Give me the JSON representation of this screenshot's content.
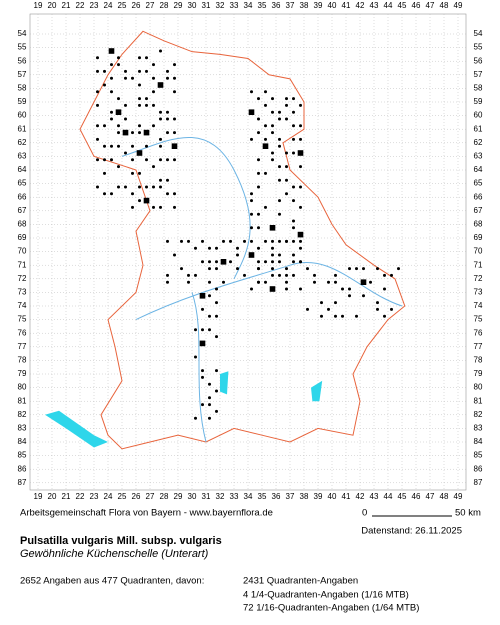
{
  "map": {
    "columns": [
      19,
      20,
      21,
      22,
      23,
      24,
      25,
      26,
      27,
      28,
      29,
      30,
      31,
      32,
      33,
      34,
      35,
      36,
      37,
      38,
      39,
      40,
      41,
      42,
      43,
      44,
      45,
      46,
      47,
      48,
      49
    ],
    "rows": [
      54,
      55,
      56,
      57,
      58,
      59,
      60,
      61,
      62,
      63,
      64,
      65,
      66,
      67,
      68,
      69,
      70,
      71,
      72,
      73,
      74,
      75,
      76,
      77,
      78,
      79,
      80,
      81,
      82,
      83,
      84,
      85,
      86,
      87
    ],
    "source": "Arbeitsgemeinschaft Flora von Bayern - www.bayernflora.de",
    "scale_start": "0",
    "scale_end": "50 km",
    "date": "Datenstand: 26.11.2025",
    "title": "Pulsatilla vulgaris Mill. subsp. vulgaris",
    "subtitle": "Gewöhnliche Küchenschelle (Unterart)",
    "summary": "2652 Angaben aus 477 Quadranten, davon:",
    "details": [
      "2431 Quadranten-Angaben",
      "4 1/4-Quadranten-Angaben (1/16 MTB)",
      "72 1/16-Quadranten-Angaben (1/64 MTB)"
    ]
  }
}
